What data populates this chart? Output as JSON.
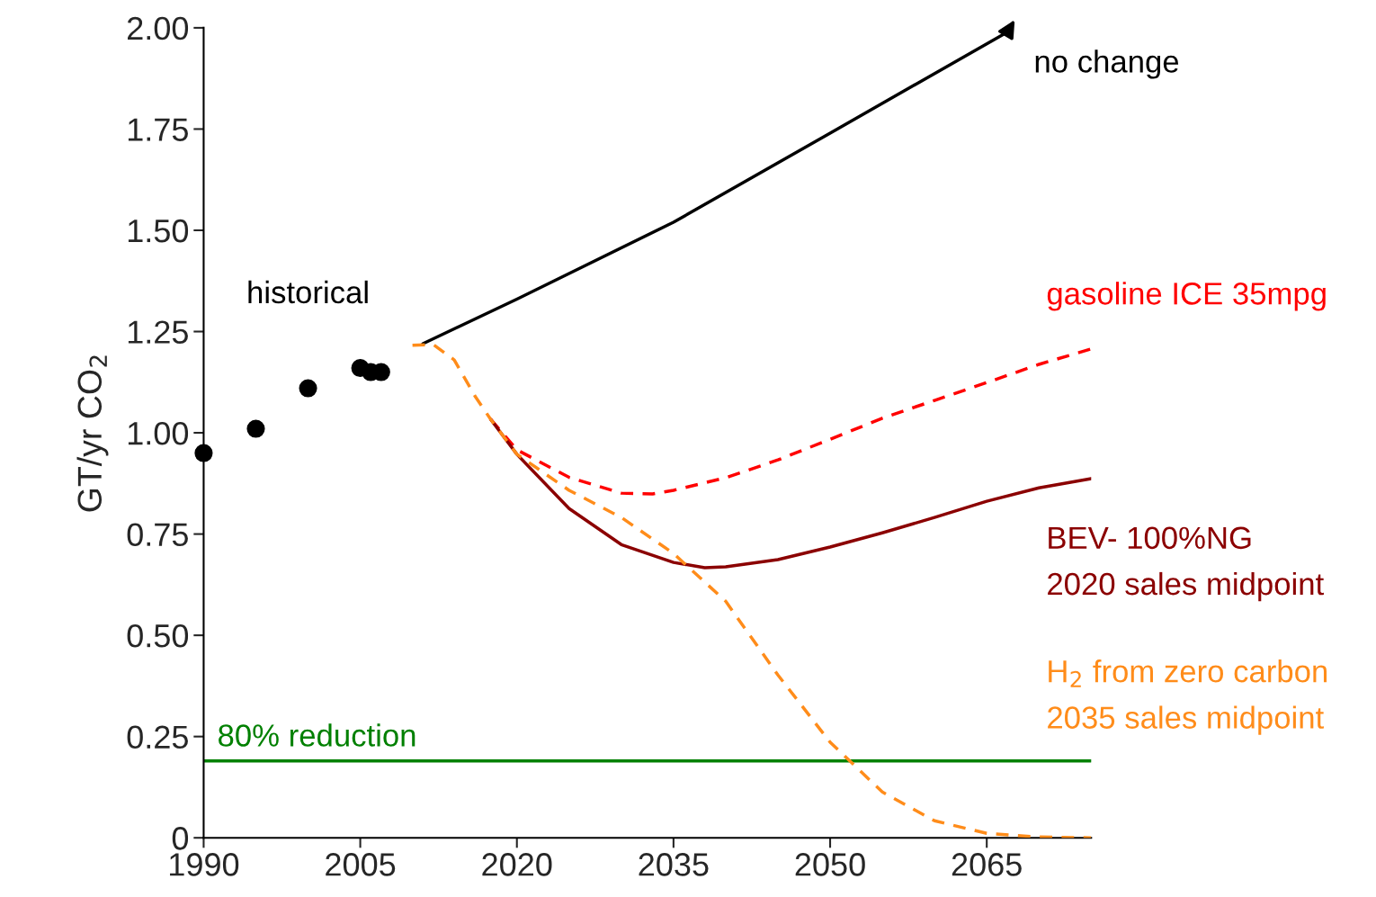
{
  "chart_data": {
    "type": "line",
    "ylabel": "GT/yr CO$_{2}$",
    "xlim": [
      1990,
      2075
    ],
    "xticks": [
      1990,
      2005,
      2020,
      2035,
      2050,
      2065
    ],
    "ylim": [
      0,
      2.0
    ],
    "yticks": [
      {
        "value": 0,
        "label": "0"
      },
      {
        "value": 0.25,
        "label": "0.25"
      },
      {
        "value": 0.5,
        "label": "0.50"
      },
      {
        "value": 0.75,
        "label": "0.75"
      },
      {
        "value": 1.0,
        "label": "1.00"
      },
      {
        "value": 1.25,
        "label": "1.25"
      },
      {
        "value": 1.5,
        "label": "1.50"
      },
      {
        "value": 1.75,
        "label": "1.75"
      },
      {
        "value": 2.0,
        "label": "2.00"
      }
    ],
    "grid": false,
    "series": [
      {
        "name": "historical",
        "type": "scatter",
        "marker": "circle",
        "color": "#000000",
        "x": [
          1990,
          1995,
          2000,
          2005,
          2006,
          2007
        ],
        "values": [
          0.95,
          1.01,
          1.11,
          1.16,
          1.15,
          1.15
        ]
      },
      {
        "name": "no change",
        "line_style": "solid",
        "color": "#000000",
        "x": [
          2011,
          2020,
          2035,
          2050,
          2067
        ],
        "values": [
          1.22,
          1.33,
          1.52,
          1.74,
          1.99
        ]
      },
      {
        "name": "gasoline ICE 35mpg",
        "line_style": "dashed",
        "color": "#ff0000",
        "x": [
          2017.5,
          2020,
          2025,
          2030,
          2033,
          2035,
          2040,
          2045,
          2050,
          2055,
          2060,
          2065,
          2070,
          2075
        ],
        "values": [
          1.033,
          0.958,
          0.89,
          0.851,
          0.849,
          0.858,
          0.889,
          0.933,
          0.984,
          1.036,
          1.08,
          1.124,
          1.169,
          1.207
        ]
      },
      {
        "name": "BEV- 100%NG\n2020 sales midpoint",
        "line_style": "solid",
        "color": "#8b0000",
        "x": [
          2017.5,
          2020,
          2025,
          2030,
          2035,
          2038,
          2040,
          2045,
          2050,
          2055,
          2060,
          2065,
          2070,
          2075
        ],
        "values": [
          1.033,
          0.947,
          0.813,
          0.724,
          0.68,
          0.667,
          0.669,
          0.687,
          0.718,
          0.753,
          0.791,
          0.831,
          0.864,
          0.887
        ]
      },
      {
        "name": "H$_{2}$ from zero carbon\n2035 sales midpoint",
        "line_style": "dashed",
        "color": "#ff8c1a",
        "x": [
          2010,
          2012,
          2014,
          2016,
          2017.5,
          2020,
          2025,
          2030,
          2035,
          2040,
          2045,
          2050,
          2055,
          2060,
          2065,
          2070,
          2075
        ],
        "values": [
          1.216,
          1.218,
          1.18,
          1.09,
          1.033,
          0.947,
          0.858,
          0.791,
          0.702,
          0.584,
          0.402,
          0.236,
          0.113,
          0.042,
          0.011,
          0.002,
          0.0
        ]
      }
    ],
    "ref_lines": [
      {
        "axis": "y",
        "value": 0.19,
        "label": "80% reduction",
        "color": "#008000",
        "line_style": "solid"
      }
    ]
  }
}
